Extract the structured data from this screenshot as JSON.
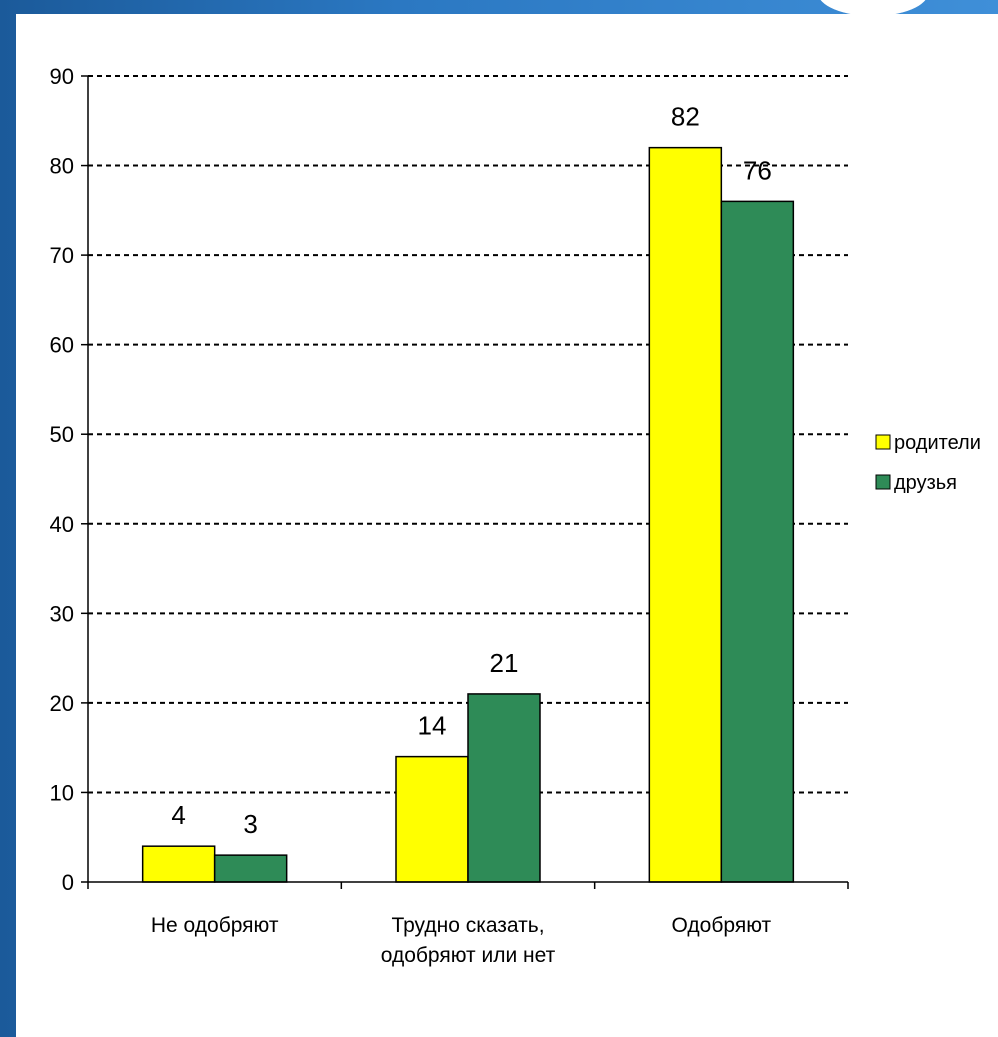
{
  "chart_data": {
    "type": "bar",
    "title": "",
    "xlabel": "",
    "ylabel": "",
    "categories": [
      [
        "Не одобряют"
      ],
      [
        "Трудно сказать,",
        "одобряют или нет"
      ],
      [
        "Одобряют"
      ]
    ],
    "series": [
      {
        "name": "родители",
        "values": [
          4,
          14,
          82
        ],
        "color": "#ffff00"
      },
      {
        "name": "друзья",
        "values": [
          3,
          21,
          76
        ],
        "color": "#2e8b57"
      }
    ],
    "ylim": [
      0,
      90
    ],
    "yticks": [
      0,
      10,
      20,
      30,
      40,
      50,
      60,
      70,
      80,
      90
    ],
    "grid": true,
    "legend_position": "right",
    "data_labels": true
  }
}
